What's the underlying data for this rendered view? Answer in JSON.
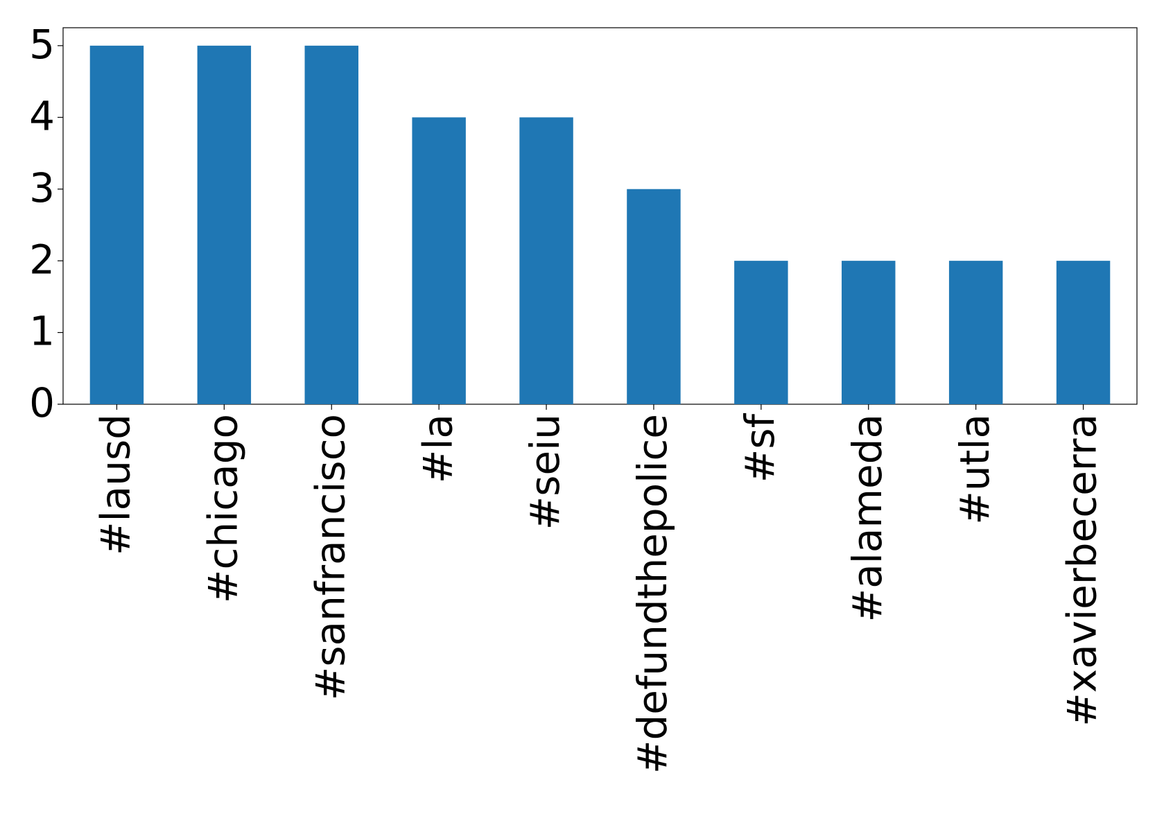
{
  "chart_data": {
    "type": "bar",
    "categories": [
      "#lausd",
      "#chicago",
      "#sanfrancisco",
      "#la",
      "#seiu",
      "#defundthepolice",
      "#sf",
      "#alameda",
      "#utla",
      "#xavierbecerra"
    ],
    "values": [
      5,
      5,
      5,
      4,
      4,
      3,
      2,
      2,
      2,
      2
    ],
    "color": "#1f77b4",
    "ylim": [
      0,
      5.25
    ],
    "yticks": [
      0,
      1,
      2,
      3,
      4,
      5
    ],
    "grid": false
  }
}
